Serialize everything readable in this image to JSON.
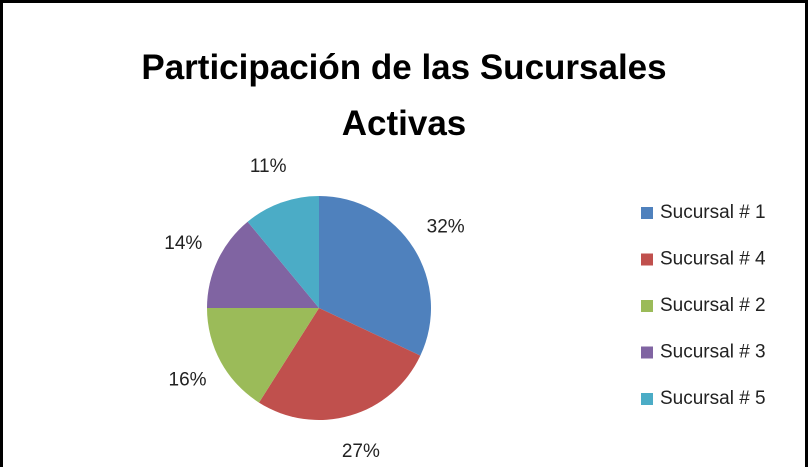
{
  "chart_data": {
    "type": "pie",
    "title": "Participación de las Sucursales Activas",
    "categories": [
      "Sucursal # 1",
      "Sucursal # 4",
      "Sucursal # 2",
      "Sucursal # 3",
      "Sucursal # 5"
    ],
    "values": [
      32,
      27,
      16,
      14,
      11
    ],
    "value_labels": [
      "32%",
      "27%",
      "16%",
      "14%",
      "11%"
    ],
    "colors": [
      "#4f81bd",
      "#c0504d",
      "#9bbb59",
      "#8064a2",
      "#4bacc6"
    ],
    "legend": "right"
  }
}
